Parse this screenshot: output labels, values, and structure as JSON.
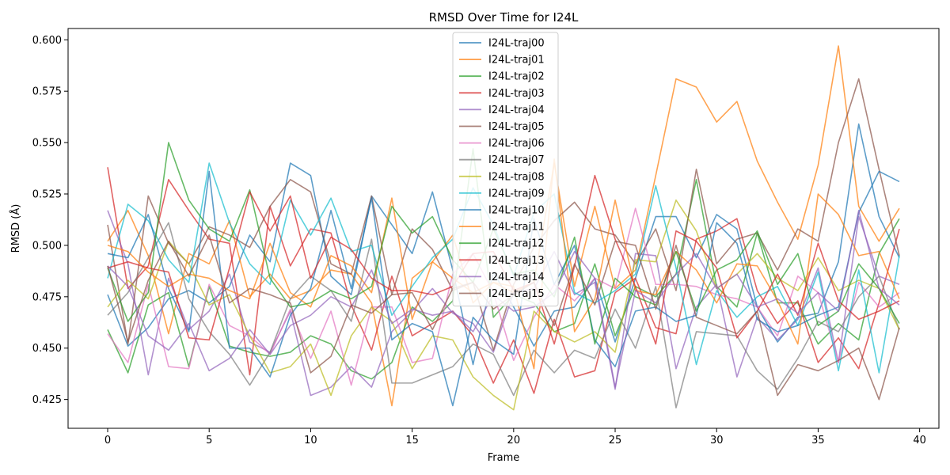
{
  "chart_data": {
    "type": "line",
    "title": "RMSD Over Time for I24L",
    "xlabel": "Frame",
    "ylabel": "RMSD (Å)",
    "xlim": [
      -1.95,
      40.95
    ],
    "ylim": [
      0.411,
      0.6055
    ],
    "xticks": [
      0,
      5,
      10,
      15,
      20,
      25,
      30,
      35,
      40
    ],
    "yticks": [
      0.425,
      0.45,
      0.475,
      0.5,
      0.525,
      0.55,
      0.575,
      0.6
    ],
    "ytick_labels": [
      "0.425",
      "0.450",
      "0.475",
      "0.500",
      "0.525",
      "0.550",
      "0.575",
      "0.600"
    ],
    "legend_position": "upper-center",
    "grid": false,
    "x": [
      0,
      1,
      2,
      3,
      4,
      5,
      6,
      7,
      8,
      9,
      10,
      11,
      12,
      13,
      14,
      15,
      16,
      17,
      18,
      19,
      20,
      21,
      22,
      23,
      24,
      25,
      26,
      27,
      28,
      29,
      30,
      31,
      32,
      33,
      34,
      35,
      36,
      37,
      38,
      39
    ],
    "series": [
      {
        "name": "I24L-traj00",
        "color": "#1f77b4",
        "values": [
          0.476,
          0.451,
          0.46,
          0.474,
          0.478,
          0.472,
          0.48,
          0.505,
          0.492,
          0.54,
          0.534,
          0.485,
          0.476,
          0.524,
          0.51,
          0.496,
          0.526,
          0.488,
          0.442,
          0.487,
          0.47,
          0.451,
          0.468,
          0.47,
          0.484,
          0.453,
          0.484,
          0.514,
          0.514,
          0.494,
          0.515,
          0.508,
          0.47,
          0.453,
          0.465,
          0.467,
          0.492,
          0.559,
          0.514,
          0.494
        ]
      },
      {
        "name": "I24L-traj01",
        "color": "#ff7f0e",
        "values": [
          0.502,
          0.517,
          0.495,
          0.457,
          0.496,
          0.491,
          0.512,
          0.475,
          0.486,
          0.474,
          0.478,
          0.488,
          0.486,
          0.472,
          0.422,
          0.484,
          0.492,
          0.505,
          0.472,
          0.482,
          0.477,
          0.482,
          0.54,
          0.48,
          0.519,
          0.479,
          0.488,
          0.534,
          0.581,
          0.577,
          0.56,
          0.57,
          0.541,
          0.521,
          0.503,
          0.539,
          0.597,
          0.519,
          0.502,
          0.518
        ]
      },
      {
        "name": "I24L-traj02",
        "color": "#2ca02c",
        "values": [
          0.459,
          0.438,
          0.471,
          0.477,
          0.441,
          0.48,
          0.451,
          0.448,
          0.446,
          0.448,
          0.456,
          0.452,
          0.439,
          0.435,
          0.443,
          0.47,
          0.463,
          0.473,
          0.547,
          0.465,
          0.476,
          0.472,
          0.458,
          0.462,
          0.491,
          0.456,
          0.48,
          0.475,
          0.486,
          0.532,
          0.48,
          0.47,
          0.506,
          0.472,
          0.472,
          0.452,
          0.462,
          0.454,
          0.496,
          0.513
        ]
      },
      {
        "name": "I24L-traj03",
        "color": "#d62728",
        "values": [
          0.538,
          0.479,
          0.49,
          0.532,
          0.517,
          0.503,
          0.501,
          0.437,
          0.519,
          0.49,
          0.508,
          0.506,
          0.471,
          0.449,
          0.485,
          0.456,
          0.462,
          0.468,
          0.456,
          0.433,
          0.454,
          0.428,
          0.464,
          0.436,
          0.439,
          0.477,
          0.484,
          0.46,
          0.457,
          0.503,
          0.507,
          0.513,
          0.478,
          0.462,
          0.473,
          0.443,
          0.455,
          0.44,
          0.472,
          0.508
        ]
      },
      {
        "name": "I24L-traj04",
        "color": "#9467bd",
        "values": [
          0.517,
          0.491,
          0.437,
          0.484,
          0.459,
          0.468,
          0.486,
          0.453,
          0.448,
          0.468,
          0.427,
          0.431,
          0.441,
          0.431,
          0.458,
          0.468,
          0.479,
          0.467,
          0.462,
          0.448,
          0.477,
          0.479,
          0.497,
          0.476,
          0.482,
          0.43,
          0.496,
          0.495,
          0.44,
          0.47,
          0.481,
          0.436,
          0.465,
          0.454,
          0.464,
          0.489,
          0.443,
          0.514,
          0.485,
          0.481
        ]
      },
      {
        "name": "I24L-traj05",
        "color": "#8c564b",
        "values": [
          0.51,
          0.452,
          0.524,
          0.501,
          0.491,
          0.509,
          0.505,
          0.499,
          0.519,
          0.532,
          0.526,
          0.491,
          0.486,
          0.524,
          0.476,
          0.508,
          0.498,
          0.478,
          0.482,
          0.449,
          0.481,
          0.499,
          0.512,
          0.521,
          0.508,
          0.505,
          0.491,
          0.508,
          0.478,
          0.537,
          0.491,
          0.503,
          0.506,
          0.488,
          0.508,
          0.502,
          0.55,
          0.581,
          0.537,
          0.495
        ]
      },
      {
        "name": "I24L-traj06",
        "color": "#e377c2",
        "values": [
          0.457,
          0.443,
          0.481,
          0.441,
          0.44,
          0.481,
          0.461,
          0.456,
          0.447,
          0.469,
          0.445,
          0.468,
          0.432,
          0.47,
          0.47,
          0.443,
          0.445,
          0.486,
          0.496,
          0.477,
          0.444,
          0.465,
          0.481,
          0.473,
          0.484,
          0.479,
          0.518,
          0.481,
          0.481,
          0.48,
          0.476,
          0.474,
          0.47,
          0.456,
          0.485,
          0.477,
          0.443,
          0.482,
          0.47,
          0.477
        ]
      },
      {
        "name": "I24L-traj07",
        "color": "#7f7f7f",
        "values": [
          0.466,
          0.477,
          0.494,
          0.511,
          0.474,
          0.458,
          0.447,
          0.432,
          0.448,
          0.474,
          0.485,
          0.478,
          0.463,
          0.503,
          0.433,
          0.433,
          0.437,
          0.441,
          0.452,
          0.447,
          0.427,
          0.449,
          0.438,
          0.449,
          0.445,
          0.469,
          0.45,
          0.48,
          0.421,
          0.458,
          0.457,
          0.456,
          0.439,
          0.43,
          0.445,
          0.463,
          0.458,
          0.475,
          0.485,
          0.459
        ]
      },
      {
        "name": "I24L-traj08",
        "color": "#bcbd22",
        "values": [
          0.47,
          0.483,
          0.474,
          0.502,
          0.491,
          0.471,
          0.476,
          0.456,
          0.438,
          0.441,
          0.452,
          0.427,
          0.456,
          0.47,
          0.463,
          0.44,
          0.456,
          0.454,
          0.436,
          0.427,
          0.42,
          0.468,
          0.458,
          0.453,
          0.458,
          0.448,
          0.493,
          0.492,
          0.522,
          0.507,
          0.479,
          0.486,
          0.496,
          0.484,
          0.478,
          0.494,
          0.478,
          0.483,
          0.479,
          0.459
        ]
      },
      {
        "name": "I24L-traj09",
        "color": "#17becf",
        "values": [
          0.484,
          0.52,
          0.512,
          0.493,
          0.482,
          0.54,
          0.511,
          0.491,
          0.481,
          0.522,
          0.505,
          0.523,
          0.497,
          0.5,
          0.466,
          0.48,
          0.494,
          0.503,
          0.528,
          0.51,
          0.485,
          0.516,
          0.525,
          0.477,
          0.472,
          0.478,
          0.486,
          0.529,
          0.489,
          0.442,
          0.478,
          0.465,
          0.475,
          0.48,
          0.461,
          0.487,
          0.439,
          0.488,
          0.438,
          0.495
        ]
      },
      {
        "name": "I24L-traj10",
        "color": "#1f77b4",
        "values": [
          0.496,
          0.494,
          0.515,
          0.479,
          0.458,
          0.536,
          0.45,
          0.45,
          0.436,
          0.466,
          0.479,
          0.517,
          0.479,
          0.523,
          0.454,
          0.462,
          0.458,
          0.422,
          0.465,
          0.454,
          0.447,
          0.513,
          0.481,
          0.5,
          0.454,
          0.441,
          0.468,
          0.47,
          0.463,
          0.466,
          0.511,
          0.501,
          0.464,
          0.458,
          0.461,
          0.466,
          0.47,
          0.516,
          0.536,
          0.531
        ]
      },
      {
        "name": "I24L-traj11",
        "color": "#ff7f0e",
        "values": [
          0.5,
          0.497,
          0.487,
          0.48,
          0.486,
          0.484,
          0.478,
          0.474,
          0.501,
          0.477,
          0.47,
          0.495,
          0.49,
          0.477,
          0.523,
          0.464,
          0.492,
          0.484,
          0.477,
          0.482,
          0.48,
          0.44,
          0.542,
          0.458,
          0.474,
          0.522,
          0.478,
          0.476,
          0.497,
          0.488,
          0.472,
          0.491,
          0.49,
          0.473,
          0.452,
          0.525,
          0.515,
          0.495,
          0.497,
          0.474
        ]
      },
      {
        "name": "I24L-traj12",
        "color": "#2ca02c",
        "values": [
          0.489,
          0.463,
          0.477,
          0.55,
          0.522,
          0.508,
          0.502,
          0.527,
          0.484,
          0.47,
          0.472,
          0.478,
          0.474,
          0.48,
          0.519,
          0.506,
          0.514,
          0.493,
          0.482,
          0.508,
          0.486,
          0.488,
          0.475,
          0.504,
          0.452,
          0.484,
          0.475,
          0.471,
          0.497,
          0.468,
          0.488,
          0.493,
          0.507,
          0.481,
          0.496,
          0.461,
          0.468,
          0.491,
          0.479,
          0.462
        ]
      },
      {
        "name": "I24L-traj13",
        "color": "#d62728",
        "values": [
          0.489,
          0.492,
          0.489,
          0.487,
          0.455,
          0.454,
          0.489,
          0.526,
          0.507,
          0.524,
          0.484,
          0.504,
          0.498,
          0.484,
          0.478,
          0.478,
          0.476,
          0.48,
          0.496,
          0.497,
          0.478,
          0.482,
          0.452,
          0.49,
          0.534,
          0.503,
          0.48,
          0.452,
          0.507,
          0.502,
          0.489,
          0.455,
          0.468,
          0.486,
          0.466,
          0.501,
          0.473,
          0.464,
          0.468,
          0.473
        ]
      },
      {
        "name": "I24L-traj14",
        "color": "#9467bd",
        "values": [
          0.49,
          0.48,
          0.456,
          0.449,
          0.462,
          0.439,
          0.445,
          0.459,
          0.447,
          0.461,
          0.466,
          0.475,
          0.47,
          0.488,
          0.462,
          0.469,
          0.466,
          0.468,
          0.458,
          0.476,
          0.468,
          0.47,
          0.477,
          0.497,
          0.484,
          0.431,
          0.478,
          0.472,
          0.486,
          0.496,
          0.479,
          0.486,
          0.47,
          0.474,
          0.467,
          0.477,
          0.468,
          0.517,
          0.479,
          0.471
        ]
      },
      {
        "name": "I24L-traj15",
        "color": "#8c564b",
        "values": [
          0.49,
          0.453,
          0.483,
          0.502,
          0.485,
          0.505,
          0.472,
          0.479,
          0.476,
          0.472,
          0.438,
          0.446,
          0.471,
          0.467,
          0.476,
          0.477,
          0.459,
          0.479,
          0.482,
          0.469,
          0.476,
          0.482,
          0.461,
          0.491,
          0.471,
          0.502,
          0.5,
          0.469,
          0.5,
          0.465,
          0.461,
          0.457,
          0.468,
          0.427,
          0.442,
          0.439,
          0.444,
          0.45,
          0.425,
          0.46
        ]
      }
    ]
  }
}
